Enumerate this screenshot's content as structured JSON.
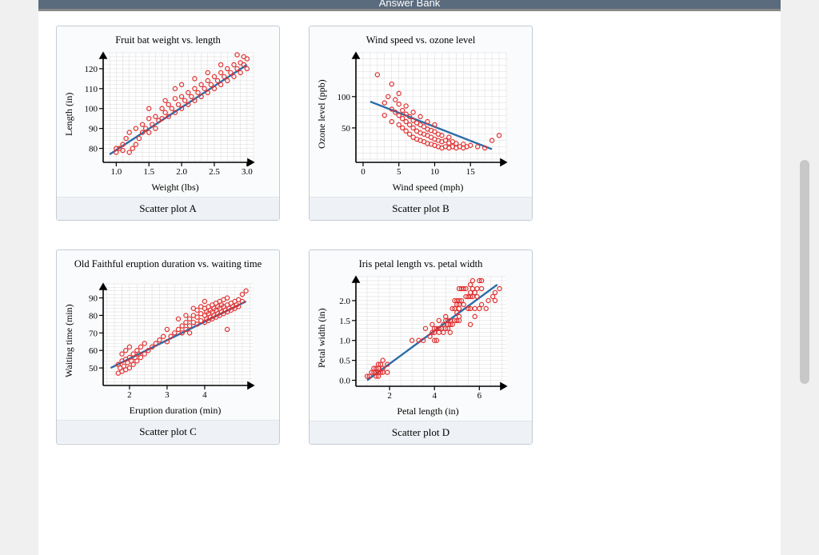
{
  "banner": {
    "label": "Answer Bank"
  },
  "style": {
    "card_border": "#c4cbd4",
    "card_bg": "#fafbfc",
    "caption_bg": "#eef1f5",
    "banner_bg": "#5a6b7d",
    "scrollbar": "#c8c8c8"
  },
  "plot_common": {
    "marker": "circle-open",
    "marker_color": "#e03030",
    "marker_stroke_width": 1.2,
    "marker_radius": 2.6,
    "line_color": "#2a6ca8",
    "line_width": 2.4,
    "grid_color": "#d9d9d9",
    "axis_color": "#000000",
    "axis_width": 1.6,
    "bg": "#ffffff",
    "tick_font_size": 11,
    "label_font_size": 12,
    "title_font_size": 12.5
  },
  "plots": {
    "A": {
      "title": "Fruit bat weight vs. length",
      "xlabel": "Weight (lbs)",
      "ylabel": "Length (in)",
      "caption": "Scatter plot A",
      "type": "scatter",
      "xlim": [
        0.8,
        3.1
      ],
      "ylim": [
        73,
        128
      ],
      "xticks": [
        1.0,
        1.5,
        2.0,
        2.5,
        3.0
      ],
      "yticks": [
        80,
        90,
        100,
        110,
        120
      ],
      "x_minor_step": 0.1,
      "y_minor_step": 2,
      "fit_line": {
        "x1": 0.9,
        "y1": 77,
        "x2": 3.0,
        "y2": 122
      },
      "points": [
        [
          1.0,
          78
        ],
        [
          1.0,
          80
        ],
        [
          1.05,
          80
        ],
        [
          1.1,
          79
        ],
        [
          1.1,
          82
        ],
        [
          1.15,
          85
        ],
        [
          1.2,
          78
        ],
        [
          1.2,
          88
        ],
        [
          1.25,
          80
        ],
        [
          1.3,
          82
        ],
        [
          1.3,
          90
        ],
        [
          1.35,
          85
        ],
        [
          1.4,
          88
        ],
        [
          1.4,
          92
        ],
        [
          1.45,
          90
        ],
        [
          1.5,
          88
        ],
        [
          1.5,
          95
        ],
        [
          1.5,
          100
        ],
        [
          1.55,
          92
        ],
        [
          1.6,
          90
        ],
        [
          1.6,
          96
        ],
        [
          1.65,
          94
        ],
        [
          1.7,
          95
        ],
        [
          1.7,
          100
        ],
        [
          1.75,
          98
        ],
        [
          1.75,
          104
        ],
        [
          1.8,
          96
        ],
        [
          1.8,
          102
        ],
        [
          1.85,
          100
        ],
        [
          1.9,
          98
        ],
        [
          1.9,
          105
        ],
        [
          1.9,
          110
        ],
        [
          1.95,
          102
        ],
        [
          2.0,
          100
        ],
        [
          2.0,
          106
        ],
        [
          2.0,
          112
        ],
        [
          2.05,
          104
        ],
        [
          2.1,
          102
        ],
        [
          2.1,
          108
        ],
        [
          2.15,
          106
        ],
        [
          2.2,
          104
        ],
        [
          2.2,
          110
        ],
        [
          2.2,
          115
        ],
        [
          2.25,
          108
        ],
        [
          2.3,
          106
        ],
        [
          2.3,
          112
        ],
        [
          2.35,
          110
        ],
        [
          2.4,
          108
        ],
        [
          2.4,
          114
        ],
        [
          2.4,
          118
        ],
        [
          2.45,
          112
        ],
        [
          2.5,
          110
        ],
        [
          2.5,
          116
        ],
        [
          2.55,
          114
        ],
        [
          2.6,
          112
        ],
        [
          2.6,
          118
        ],
        [
          2.6,
          122
        ],
        [
          2.65,
          116
        ],
        [
          2.7,
          114
        ],
        [
          2.7,
          120
        ],
        [
          2.75,
          118
        ],
        [
          2.8,
          116
        ],
        [
          2.8,
          122
        ],
        [
          2.85,
          120
        ],
        [
          2.9,
          118
        ],
        [
          2.9,
          123
        ],
        [
          2.95,
          122
        ],
        [
          3.0,
          120
        ],
        [
          3.0,
          125
        ],
        [
          2.95,
          126
        ],
        [
          2.85,
          127
        ]
      ]
    },
    "B": {
      "title": "Wind speed vs. ozone level",
      "xlabel": "Wind speed (mph)",
      "ylabel": "Ozone level (ppb)",
      "caption": "Scatter plot B",
      "type": "scatter",
      "xlim": [
        -1,
        20
      ],
      "ylim": [
        -5,
        170
      ],
      "xticks": [
        0,
        5,
        10,
        15
      ],
      "yticks": [
        50,
        100
      ],
      "x_minor_step": 1,
      "y_minor_step": 10,
      "fit_line": {
        "x1": 1,
        "y1": 92,
        "x2": 18,
        "y2": 16
      },
      "points": [
        [
          2,
          135
        ],
        [
          3,
          90
        ],
        [
          3,
          70
        ],
        [
          3.5,
          100
        ],
        [
          4,
          80
        ],
        [
          4,
          60
        ],
        [
          4,
          120
        ],
        [
          4.5,
          75
        ],
        [
          4.5,
          95
        ],
        [
          5,
          55
        ],
        [
          5,
          70
        ],
        [
          5,
          88
        ],
        [
          5,
          105
        ],
        [
          5.5,
          50
        ],
        [
          5.5,
          65
        ],
        [
          5.5,
          78
        ],
        [
          6,
          45
        ],
        [
          6,
          60
        ],
        [
          6,
          72
        ],
        [
          6,
          85
        ],
        [
          6.5,
          40
        ],
        [
          6.5,
          55
        ],
        [
          6.5,
          68
        ],
        [
          7,
          35
        ],
        [
          7,
          50
        ],
        [
          7,
          62
        ],
        [
          7,
          75
        ],
        [
          7.5,
          32
        ],
        [
          7.5,
          45
        ],
        [
          7.5,
          58
        ],
        [
          8,
          30
        ],
        [
          8,
          42
        ],
        [
          8,
          55
        ],
        [
          8,
          68
        ],
        [
          8.5,
          28
        ],
        [
          8.5,
          40
        ],
        [
          8.5,
          52
        ],
        [
          9,
          25
        ],
        [
          9,
          38
        ],
        [
          9,
          48
        ],
        [
          9,
          60
        ],
        [
          9.5,
          24
        ],
        [
          9.5,
          35
        ],
        [
          9.5,
          46
        ],
        [
          10,
          22
        ],
        [
          10,
          32
        ],
        [
          10,
          44
        ],
        [
          10,
          55
        ],
        [
          10.5,
          20
        ],
        [
          10.5,
          30
        ],
        [
          10.5,
          40
        ],
        [
          11,
          18
        ],
        [
          11,
          28
        ],
        [
          11,
          38
        ],
        [
          11.5,
          20
        ],
        [
          11.5,
          30
        ],
        [
          12,
          18
        ],
        [
          12,
          26
        ],
        [
          12,
          35
        ],
        [
          12.5,
          20
        ],
        [
          12.5,
          28
        ],
        [
          13,
          18
        ],
        [
          13,
          25
        ],
        [
          13.5,
          20
        ],
        [
          14,
          18
        ],
        [
          14,
          24
        ],
        [
          14.5,
          20
        ],
        [
          15,
          22
        ],
        [
          16,
          20
        ],
        [
          17,
          18
        ],
        [
          18,
          30
        ],
        [
          19,
          38
        ]
      ]
    },
    "C": {
      "title": "Old Faithful eruption duration vs. waiting time",
      "xlabel": "Eruption duration (min)",
      "ylabel": "Waiting time (min)",
      "caption": "Scatter plot C",
      "type": "scatter",
      "xlim": [
        1.3,
        5.3
      ],
      "ylim": [
        40,
        98
      ],
      "xticks": [
        2,
        3,
        4
      ],
      "yticks": [
        50,
        60,
        70,
        80,
        90
      ],
      "x_minor_step": 0.2,
      "y_minor_step": 2,
      "fit_line": {
        "x1": 1.5,
        "y1": 50,
        "x2": 5.1,
        "y2": 88
      },
      "points": [
        [
          1.7,
          47
        ],
        [
          1.7,
          52
        ],
        [
          1.75,
          50
        ],
        [
          1.8,
          48
        ],
        [
          1.8,
          54
        ],
        [
          1.8,
          58
        ],
        [
          1.85,
          51
        ],
        [
          1.9,
          49
        ],
        [
          1.9,
          55
        ],
        [
          1.9,
          60
        ],
        [
          1.95,
          53
        ],
        [
          2.0,
          50
        ],
        [
          2.0,
          56
        ],
        [
          2.0,
          62
        ],
        [
          2.05,
          54
        ],
        [
          2.1,
          52
        ],
        [
          2.1,
          58
        ],
        [
          2.15,
          56
        ],
        [
          2.2,
          54
        ],
        [
          2.2,
          60
        ],
        [
          2.25,
          58
        ],
        [
          2.3,
          56
        ],
        [
          2.3,
          62
        ],
        [
          2.4,
          58
        ],
        [
          2.4,
          64
        ],
        [
          2.5,
          60
        ],
        [
          2.6,
          62
        ],
        [
          2.7,
          64
        ],
        [
          2.8,
          66
        ],
        [
          2.9,
          68
        ],
        [
          3.0,
          65
        ],
        [
          3.0,
          72
        ],
        [
          3.1,
          68
        ],
        [
          3.2,
          70
        ],
        [
          3.3,
          72
        ],
        [
          3.3,
          78
        ],
        [
          3.4,
          70
        ],
        [
          3.4,
          74
        ],
        [
          3.5,
          72
        ],
        [
          3.5,
          76
        ],
        [
          3.5,
          80
        ],
        [
          3.6,
          74
        ],
        [
          3.6,
          78
        ],
        [
          3.7,
          76
        ],
        [
          3.7,
          80
        ],
        [
          3.7,
          84
        ],
        [
          3.8,
          75
        ],
        [
          3.8,
          79
        ],
        [
          3.8,
          83
        ],
        [
          3.9,
          77
        ],
        [
          3.9,
          81
        ],
        [
          3.9,
          85
        ],
        [
          4.0,
          76
        ],
        [
          4.0,
          80
        ],
        [
          4.0,
          84
        ],
        [
          4.0,
          88
        ],
        [
          4.05,
          78
        ],
        [
          4.05,
          82
        ],
        [
          4.1,
          77
        ],
        [
          4.1,
          81
        ],
        [
          4.1,
          85
        ],
        [
          4.15,
          79
        ],
        [
          4.15,
          83
        ],
        [
          4.2,
          78
        ],
        [
          4.2,
          82
        ],
        [
          4.2,
          86
        ],
        [
          4.25,
          80
        ],
        [
          4.25,
          84
        ],
        [
          4.3,
          79
        ],
        [
          4.3,
          83
        ],
        [
          4.3,
          87
        ],
        [
          4.35,
          81
        ],
        [
          4.35,
          85
        ],
        [
          4.4,
          80
        ],
        [
          4.4,
          84
        ],
        [
          4.4,
          88
        ],
        [
          4.45,
          82
        ],
        [
          4.45,
          86
        ],
        [
          4.5,
          81
        ],
        [
          4.5,
          85
        ],
        [
          4.5,
          89
        ],
        [
          4.55,
          83
        ],
        [
          4.6,
          82
        ],
        [
          4.6,
          86
        ],
        [
          4.6,
          90
        ],
        [
          4.65,
          84
        ],
        [
          4.7,
          83
        ],
        [
          4.7,
          87
        ],
        [
          4.75,
          85
        ],
        [
          4.8,
          84
        ],
        [
          4.8,
          88
        ],
        [
          4.85,
          86
        ],
        [
          4.9,
          85
        ],
        [
          4.9,
          89
        ],
        [
          5.0,
          88
        ],
        [
          5.0,
          92
        ],
        [
          5.1,
          94
        ],
        [
          4.6,
          72
        ],
        [
          3.6,
          70
        ]
      ]
    },
    "D": {
      "title": "Iris petal length vs. petal width",
      "xlabel": "Petal length (in)",
      "ylabel": "Petal width (in)",
      "caption": "Scatter plot D",
      "type": "scatter",
      "xlim": [
        0.5,
        7.2
      ],
      "ylim": [
        -0.15,
        2.6
      ],
      "xticks": [
        2,
        4,
        6
      ],
      "yticks": [
        0.0,
        0.5,
        1.0,
        1.5,
        2.0
      ],
      "x_minor_step": 0.5,
      "y_minor_step": 0.1,
      "fit_line": {
        "x1": 1.0,
        "y1": 0.0,
        "x2": 6.8,
        "y2": 2.4
      },
      "points": [
        [
          1.0,
          0.1
        ],
        [
          1.1,
          0.1
        ],
        [
          1.2,
          0.2
        ],
        [
          1.3,
          0.2
        ],
        [
          1.3,
          0.3
        ],
        [
          1.4,
          0.1
        ],
        [
          1.4,
          0.2
        ],
        [
          1.4,
          0.3
        ],
        [
          1.5,
          0.1
        ],
        [
          1.5,
          0.2
        ],
        [
          1.5,
          0.3
        ],
        [
          1.5,
          0.4
        ],
        [
          1.6,
          0.2
        ],
        [
          1.6,
          0.4
        ],
        [
          1.7,
          0.2
        ],
        [
          1.7,
          0.3
        ],
        [
          1.7,
          0.5
        ],
        [
          1.9,
          0.2
        ],
        [
          1.9,
          0.4
        ],
        [
          3.0,
          1.0
        ],
        [
          3.3,
          1.0
        ],
        [
          3.5,
          1.0
        ],
        [
          3.6,
          1.3
        ],
        [
          3.8,
          1.1
        ],
        [
          3.9,
          1.2
        ],
        [
          3.9,
          1.4
        ],
        [
          4.0,
          1.0
        ],
        [
          4.0,
          1.2
        ],
        [
          4.0,
          1.3
        ],
        [
          4.1,
          1.0
        ],
        [
          4.1,
          1.3
        ],
        [
          4.2,
          1.2
        ],
        [
          4.2,
          1.3
        ],
        [
          4.2,
          1.5
        ],
        [
          4.3,
          1.3
        ],
        [
          4.4,
          1.2
        ],
        [
          4.4,
          1.4
        ],
        [
          4.5,
          1.3
        ],
        [
          4.5,
          1.5
        ],
        [
          4.5,
          1.6
        ],
        [
          4.6,
          1.3
        ],
        [
          4.6,
          1.4
        ],
        [
          4.6,
          1.5
        ],
        [
          4.7,
          1.2
        ],
        [
          4.7,
          1.4
        ],
        [
          4.7,
          1.5
        ],
        [
          4.8,
          1.4
        ],
        [
          4.8,
          1.8
        ],
        [
          4.9,
          1.5
        ],
        [
          4.9,
          1.8
        ],
        [
          4.9,
          2.0
        ],
        [
          5.0,
          1.5
        ],
        [
          5.0,
          1.7
        ],
        [
          5.0,
          1.9
        ],
        [
          5.0,
          2.0
        ],
        [
          5.1,
          1.5
        ],
        [
          5.1,
          1.6
        ],
        [
          5.1,
          1.8
        ],
        [
          5.1,
          1.9
        ],
        [
          5.1,
          2.0
        ],
        [
          5.1,
          2.3
        ],
        [
          5.2,
          2.0
        ],
        [
          5.2,
          2.3
        ],
        [
          5.3,
          1.9
        ],
        [
          5.3,
          2.3
        ],
        [
          5.4,
          2.1
        ],
        [
          5.4,
          2.3
        ],
        [
          5.5,
          1.8
        ],
        [
          5.5,
          2.1
        ],
        [
          5.6,
          1.4
        ],
        [
          5.6,
          1.8
        ],
        [
          5.6,
          2.1
        ],
        [
          5.6,
          2.2
        ],
        [
          5.6,
          2.4
        ],
        [
          5.7,
          2.1
        ],
        [
          5.7,
          2.3
        ],
        [
          5.7,
          2.5
        ],
        [
          5.8,
          1.6
        ],
        [
          5.8,
          1.8
        ],
        [
          5.8,
          2.2
        ],
        [
          5.9,
          2.1
        ],
        [
          5.9,
          2.3
        ],
        [
          6.0,
          1.8
        ],
        [
          6.0,
          2.5
        ],
        [
          6.1,
          1.9
        ],
        [
          6.1,
          2.3
        ],
        [
          6.1,
          2.5
        ],
        [
          6.3,
          1.8
        ],
        [
          6.4,
          2.0
        ],
        [
          6.6,
          2.1
        ],
        [
          6.7,
          2.0
        ],
        [
          6.7,
          2.2
        ],
        [
          6.9,
          2.3
        ]
      ]
    }
  }
}
